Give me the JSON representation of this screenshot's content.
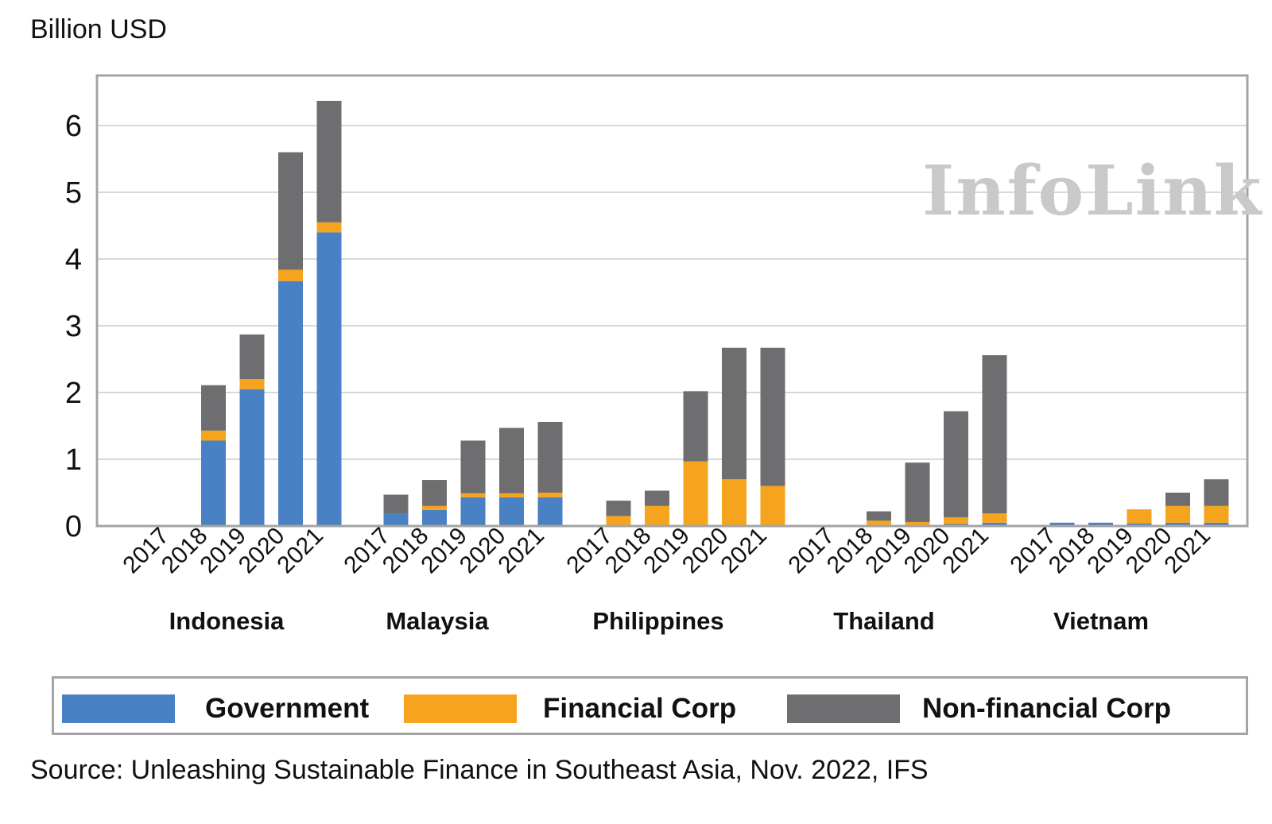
{
  "unit_label": "Billion USD",
  "watermark": "InfoLink",
  "source": "Source: Unleashing Sustainable Finance in Southeast Asia, Nov. 2022, IFS",
  "colors": {
    "government": "#4a80c4",
    "financial": "#f6a31e",
    "nonfinancial": "#6e6e70",
    "grid": "#d8d8d8",
    "frame": "#a4a4a4"
  },
  "legend": [
    {
      "label": "Government",
      "color": "#4a80c4"
    },
    {
      "label": "Financial Corp",
      "color": "#f6a31e"
    },
    {
      "label": "Non-financial Corp",
      "color": "#6e6e70"
    }
  ],
  "chart_data": {
    "type": "bar",
    "stacked": true,
    "ylim": [
      0,
      6.6
    ],
    "yticks": [
      0,
      1,
      2,
      3,
      4,
      5,
      6
    ],
    "years": [
      "2017",
      "2018",
      "2019",
      "2020",
      "2021"
    ],
    "groups": [
      {
        "name": "Indonesia",
        "government": [
          0,
          1.28,
          2.05,
          3.67,
          4.4
        ],
        "financial": [
          0,
          0.15,
          0.15,
          0.17,
          0.15
        ],
        "nonfinancial": [
          0,
          0.68,
          0.67,
          1.76,
          1.82
        ]
      },
      {
        "name": "Malaysia",
        "government": [
          0.18,
          0.24,
          0.43,
          0.43,
          0.43
        ],
        "financial": [
          0,
          0.06,
          0.06,
          0.06,
          0.07
        ],
        "nonfinancial": [
          0.29,
          0.39,
          0.79,
          0.98,
          1.06
        ]
      },
      {
        "name": "Philippines",
        "government": [
          0,
          0,
          0,
          0,
          0
        ],
        "financial": [
          0.15,
          0.3,
          0.97,
          0.7,
          0.6
        ],
        "nonfinancial": [
          0.23,
          0.23,
          1.05,
          1.97,
          2.07
        ]
      },
      {
        "name": "Thailand",
        "government": [
          0,
          0,
          0,
          0.03,
          0.05
        ],
        "financial": [
          0,
          0.08,
          0.06,
          0.1,
          0.14
        ],
        "nonfinancial": [
          0,
          0.14,
          0.89,
          1.59,
          2.37
        ]
      },
      {
        "name": "Vietnam",
        "government": [
          0.05,
          0.05,
          0.04,
          0.05,
          0.05
        ],
        "financial": [
          0,
          0,
          0.21,
          0.25,
          0.25
        ],
        "nonfinancial": [
          0,
          0,
          0,
          0.2,
          0.4
        ]
      }
    ]
  }
}
